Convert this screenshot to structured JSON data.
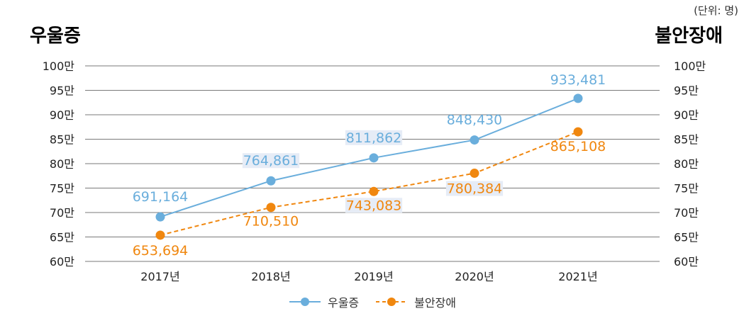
{
  "unit_note": "(단위: 명)",
  "left_title": "우울증",
  "right_title": "불안장애",
  "colors": {
    "depression": "#6aaedc",
    "anxiety": "#f0870f",
    "label_bg": "#e6ecf6",
    "grid": "#7a7a7a"
  },
  "chart_data": {
    "type": "line",
    "categories": [
      "2017년",
      "2018년",
      "2019년",
      "2020년",
      "2021년"
    ],
    "series": [
      {
        "name": "우울증",
        "values": [
          691164,
          764861,
          811862,
          848430,
          933481
        ],
        "labels": [
          "691,164",
          "764,861",
          "811,862",
          "848,430",
          "933,481"
        ],
        "style": "solid"
      },
      {
        "name": "불안장애",
        "values": [
          653694,
          710510,
          743083,
          780384,
          865108
        ],
        "labels": [
          "653,694",
          "710,510",
          "743,083",
          "780,384",
          "865,108"
        ],
        "style": "dashed"
      }
    ],
    "ylim": [
      600000,
      1000000
    ],
    "ytick_values": [
      600000,
      650000,
      700000,
      750000,
      800000,
      850000,
      900000,
      950000,
      1000000
    ],
    "ytick_labels": [
      "60만",
      "65만",
      "70만",
      "75만",
      "80만",
      "85만",
      "90만",
      "95만",
      "100만"
    ],
    "grid": true,
    "legend_position": "bottom"
  }
}
